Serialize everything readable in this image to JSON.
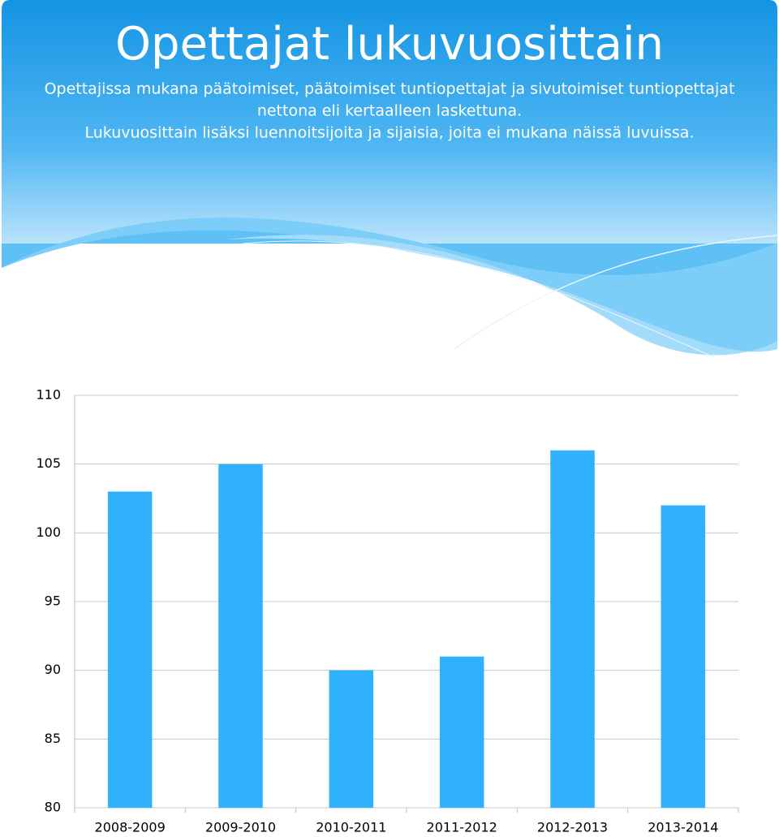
{
  "chart_data": {
    "type": "bar",
    "title": "Opettajat lukuvuosittain",
    "subtitle": [
      "Opettajissa mukana päätoimiset, päätoimiset tuntiopettajat ja sivutoimiset tuntiopettajat",
      "nettona eli kertaalleen laskettuna.",
      "Lukuvuosittain lisäksi luennoitsijoita ja sijaisia, joita ei mukana näissä luvuissa."
    ],
    "categories": [
      "2008-2009",
      "2009-2010",
      "2010-2011",
      "2011-2012",
      "2012-2013",
      "2013-2014"
    ],
    "values": [
      103,
      105,
      90,
      91,
      106,
      102
    ],
    "color": "#2fb2fb",
    "ylim": [
      80,
      110
    ],
    "yticks": [
      80,
      85,
      90,
      95,
      100,
      105,
      110
    ],
    "grid": true
  }
}
